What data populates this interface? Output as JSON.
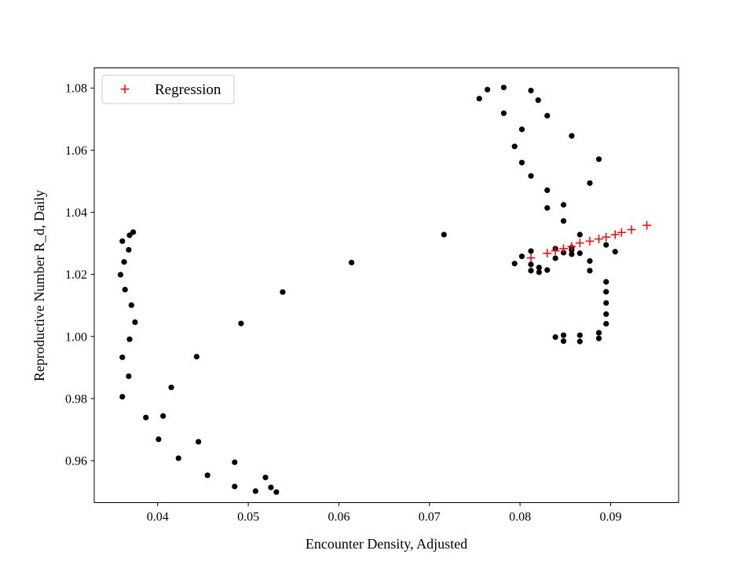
{
  "chart_data": {
    "type": "scatter",
    "title": "",
    "xlabel": "Encounter Density, Adjusted",
    "ylabel": "Reproductive Number R_d, Daily",
    "xlim": [
      0.033,
      0.0975
    ],
    "ylim": [
      0.9465,
      1.0865
    ],
    "xticks": [
      0.04,
      0.05,
      0.06,
      0.07,
      0.08,
      0.09
    ],
    "xtick_labels": [
      "0.04",
      "0.05",
      "0.06",
      "0.07",
      "0.08",
      "0.09"
    ],
    "yticks": [
      0.96,
      0.98,
      1.0,
      1.02,
      1.04,
      1.06,
      1.08
    ],
    "ytick_labels": [
      "0.96",
      "0.98",
      "1.00",
      "1.02",
      "1.04",
      "1.06",
      "1.08"
    ],
    "grid": false,
    "legend": {
      "position": "top-left"
    },
    "series": [
      {
        "name": "",
        "marker": "circle",
        "color": "#000000",
        "points": [
          [
            0.0359,
            1.0199
          ],
          [
            0.0361,
            1.0307
          ],
          [
            0.0363,
            1.024
          ],
          [
            0.0364,
            1.0151
          ],
          [
            0.0368,
            1.0279
          ],
          [
            0.0369,
            1.0326
          ],
          [
            0.0373,
            1.0336
          ],
          [
            0.0371,
            1.0101
          ],
          [
            0.0375,
            1.0046
          ],
          [
            0.0369,
            0.9991
          ],
          [
            0.0361,
            0.9933
          ],
          [
            0.0368,
            0.9872
          ],
          [
            0.0361,
            0.9806
          ],
          [
            0.0387,
            0.9739
          ],
          [
            0.0406,
            0.9744
          ],
          [
            0.0401,
            0.9669
          ],
          [
            0.0415,
            0.9836
          ],
          [
            0.0423,
            0.9608
          ],
          [
            0.0443,
            0.9935
          ],
          [
            0.0445,
            0.9661
          ],
          [
            0.0455,
            0.9553
          ],
          [
            0.0485,
            0.9595
          ],
          [
            0.0485,
            0.9517
          ],
          [
            0.0508,
            0.9502
          ],
          [
            0.0519,
            0.9546
          ],
          [
            0.0525,
            0.9514
          ],
          [
            0.0531,
            0.9499
          ],
          [
            0.0492,
            1.0042
          ],
          [
            0.0538,
            1.0143
          ],
          [
            0.0614,
            1.0238
          ],
          [
            0.0716,
            1.0328
          ],
          [
            0.0755,
            1.0766
          ],
          [
            0.0764,
            1.0795
          ],
          [
            0.0782,
            1.0802
          ],
          [
            0.0782,
            1.0719
          ],
          [
            0.0794,
            1.0612
          ],
          [
            0.0802,
            1.0667
          ],
          [
            0.0802,
            1.056
          ],
          [
            0.0812,
            1.0517
          ],
          [
            0.0812,
            1.0792
          ],
          [
            0.082,
            1.0761
          ],
          [
            0.083,
            1.0711
          ],
          [
            0.083,
            1.0471
          ],
          [
            0.083,
            1.0414
          ],
          [
            0.0848,
            1.0424
          ],
          [
            0.0848,
            1.0372
          ],
          [
            0.0857,
            1.0646
          ],
          [
            0.0887,
            1.0571
          ],
          [
            0.0877,
            1.0494
          ],
          [
            0.0866,
            1.0328
          ],
          [
            0.0812,
            1.0275
          ],
          [
            0.0802,
            1.0258
          ],
          [
            0.0794,
            1.0235
          ],
          [
            0.0812,
            1.0232
          ],
          [
            0.0812,
            1.0212
          ],
          [
            0.0821,
            1.0222
          ],
          [
            0.0821,
            1.0207
          ],
          [
            0.083,
            1.0214
          ],
          [
            0.0839,
            1.0252
          ],
          [
            0.0839,
            1.0283
          ],
          [
            0.0848,
            1.027
          ],
          [
            0.0857,
            1.0286
          ],
          [
            0.0857,
            1.0265
          ],
          [
            0.0857,
            1.0278
          ],
          [
            0.0866,
            1.0268
          ],
          [
            0.0877,
            1.0243
          ],
          [
            0.0877,
            1.0212
          ],
          [
            0.0895,
            1.0295
          ],
          [
            0.0905,
            1.0273
          ],
          [
            0.0895,
            1.0176
          ],
          [
            0.0895,
            1.0144
          ],
          [
            0.0895,
            1.0108
          ],
          [
            0.0895,
            1.0072
          ],
          [
            0.0895,
            1.0041
          ],
          [
            0.0887,
            1.0012
          ],
          [
            0.0887,
            0.9994
          ],
          [
            0.0866,
            1.0004
          ],
          [
            0.0866,
            0.9984
          ],
          [
            0.0848,
            1.0004
          ],
          [
            0.0848,
            0.9985
          ],
          [
            0.0839,
            0.9998
          ]
        ]
      },
      {
        "name": "Regression",
        "marker": "plus",
        "color": "#ff0000",
        "points": [
          [
            0.0812,
            1.0253
          ],
          [
            0.083,
            1.0268
          ],
          [
            0.0839,
            1.0276
          ],
          [
            0.0848,
            1.0283
          ],
          [
            0.0857,
            1.029
          ],
          [
            0.0866,
            1.0301
          ],
          [
            0.0877,
            1.0307
          ],
          [
            0.0887,
            1.0314
          ],
          [
            0.0895,
            1.032
          ],
          [
            0.0905,
            1.0328
          ],
          [
            0.0912,
            1.0335
          ],
          [
            0.0923,
            1.0344
          ],
          [
            0.094,
            1.0358
          ]
        ]
      }
    ]
  }
}
